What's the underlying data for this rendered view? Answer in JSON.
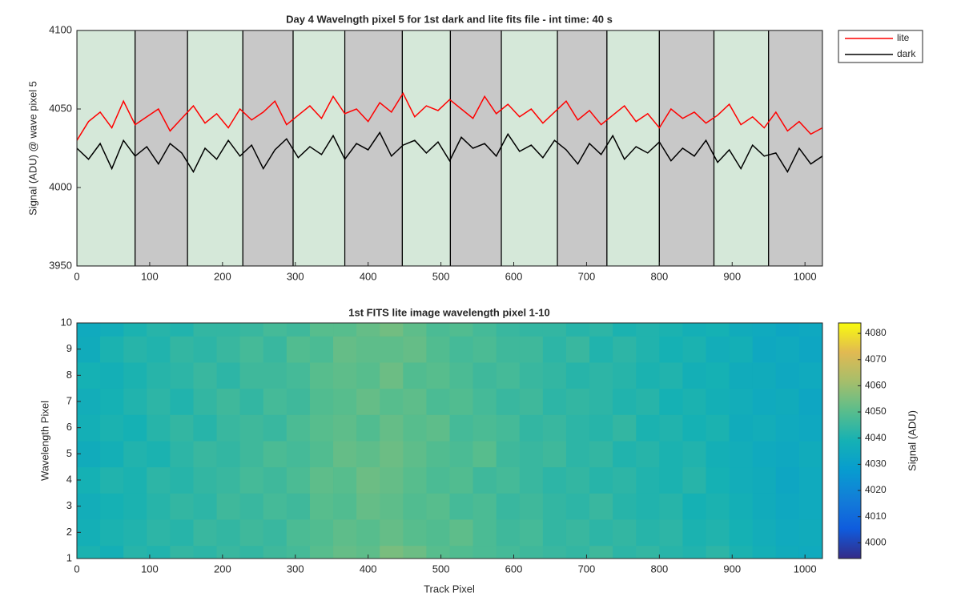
{
  "chart_data": [
    {
      "type": "line",
      "title": "Day 4 Wavelngth pixel 5 for 1st dark and lite fits file - int time: 40 s",
      "ylabel": "Signal (ADU) @ wave pixel 5",
      "x": [
        0,
        16,
        32,
        48,
        64,
        80,
        96,
        112,
        128,
        144,
        160,
        176,
        192,
        208,
        224,
        240,
        256,
        272,
        288,
        304,
        320,
        336,
        352,
        368,
        384,
        400,
        416,
        432,
        448,
        464,
        480,
        496,
        512,
        528,
        544,
        560,
        576,
        592,
        608,
        624,
        640,
        656,
        672,
        688,
        704,
        720,
        736,
        752,
        768,
        784,
        800,
        816,
        832,
        848,
        864,
        880,
        896,
        912,
        928,
        944,
        960,
        976,
        992,
        1008,
        1024
      ],
      "series": [
        {
          "name": "lite",
          "color": "#ff0000",
          "values": [
            4030,
            4042,
            4048,
            4038,
            4055,
            4040,
            4045,
            4050,
            4036,
            4044,
            4052,
            4041,
            4047,
            4038,
            4050,
            4043,
            4048,
            4055,
            4040,
            4046,
            4052,
            4044,
            4058,
            4047,
            4050,
            4042,
            4054,
            4048,
            4060,
            4045,
            4052,
            4049,
            4056,
            4050,
            4044,
            4058,
            4047,
            4053,
            4045,
            4050,
            4041,
            4048,
            4055,
            4043,
            4049,
            4040,
            4046,
            4052,
            4042,
            4047,
            4038,
            4050,
            4044,
            4048,
            4041,
            4046,
            4053,
            4040,
            4045,
            4038,
            4048,
            4036,
            4042,
            4034,
            4038
          ]
        },
        {
          "name": "dark",
          "color": "#000000",
          "values": [
            4025,
            4018,
            4028,
            4012,
            4030,
            4020,
            4026,
            4015,
            4028,
            4022,
            4010,
            4025,
            4018,
            4030,
            4020,
            4027,
            4012,
            4024,
            4031,
            4019,
            4026,
            4021,
            4033,
            4018,
            4028,
            4024,
            4035,
            4020,
            4027,
            4030,
            4022,
            4029,
            4017,
            4032,
            4025,
            4028,
            4020,
            4034,
            4023,
            4027,
            4019,
            4030,
            4024,
            4015,
            4028,
            4021,
            4033,
            4018,
            4026,
            4022,
            4029,
            4017,
            4025,
            4020,
            4030,
            4016,
            4024,
            4012,
            4027,
            4020,
            4022,
            4010,
            4025,
            4015,
            4020
          ]
        }
      ],
      "band_edges": [
        0,
        80,
        152,
        228,
        297,
        368,
        447,
        513,
        583,
        660,
        728,
        800,
        875,
        950,
        1024
      ],
      "band_colors": [
        "#d5e8d9",
        "#c8c8c8"
      ],
      "xlim": [
        0,
        1024
      ],
      "ylim": [
        3950,
        4100
      ],
      "xticks": [
        0,
        100,
        200,
        300,
        400,
        500,
        600,
        700,
        800,
        900,
        1000
      ],
      "yticks": [
        3950,
        4000,
        4050,
        4100
      ],
      "legend": "northeast-outside"
    },
    {
      "type": "heatmap",
      "title": "1st FITS lite image wavelength pixel 1-10",
      "xlabel": "Track Pixel",
      "ylabel": "Wavelength Pixel",
      "x_edges": [
        0,
        32,
        64,
        96,
        128,
        160,
        192,
        224,
        256,
        288,
        320,
        352,
        384,
        416,
        448,
        480,
        512,
        544,
        576,
        608,
        640,
        672,
        704,
        736,
        768,
        800,
        832,
        864,
        896,
        928,
        960,
        992,
        1024
      ],
      "y": [
        1,
        2,
        3,
        4,
        5,
        6,
        7,
        8,
        9,
        10
      ],
      "z": [
        [
          4040,
          4038,
          4042,
          4041,
          4044,
          4043,
          4045,
          4044,
          4046,
          4047,
          4050,
          4052,
          4051,
          4055,
          4053,
          4050,
          4049,
          4048,
          4047,
          4046,
          4045,
          4044,
          4046,
          4043,
          4044,
          4042,
          4041,
          4043,
          4040,
          4038,
          4036,
          4035
        ],
        [
          4038,
          4040,
          4041,
          4043,
          4042,
          4045,
          4044,
          4046,
          4045,
          4048,
          4049,
          4051,
          4050,
          4052,
          4050,
          4049,
          4051,
          4048,
          4046,
          4047,
          4044,
          4045,
          4043,
          4044,
          4042,
          4043,
          4040,
          4041,
          4039,
          4037,
          4035,
          4036
        ],
        [
          4037,
          4039,
          4040,
          4042,
          4044,
          4043,
          4046,
          4045,
          4047,
          4046,
          4050,
          4049,
          4052,
          4051,
          4049,
          4050,
          4047,
          4048,
          4045,
          4046,
          4044,
          4043,
          4045,
          4042,
          4041,
          4042,
          4039,
          4040,
          4038,
          4036,
          4034,
          4035
        ],
        [
          4039,
          4041,
          4040,
          4043,
          4042,
          4044,
          4045,
          4047,
          4046,
          4048,
          4051,
          4050,
          4053,
          4052,
          4050,
          4048,
          4049,
          4046,
          4047,
          4045,
          4043,
          4044,
          4042,
          4043,
          4041,
          4040,
          4042,
          4039,
          4037,
          4036,
          4033,
          4035
        ],
        [
          4036,
          4038,
          4041,
          4040,
          4043,
          4045,
          4044,
          4046,
          4048,
          4047,
          4049,
          4052,
          4051,
          4053,
          4051,
          4049,
          4048,
          4050,
          4046,
          4045,
          4046,
          4043,
          4044,
          4041,
          4042,
          4040,
          4041,
          4038,
          4037,
          4035,
          4034,
          4036
        ],
        [
          4038,
          4040,
          4039,
          4042,
          4044,
          4042,
          4045,
          4046,
          4045,
          4048,
          4050,
          4051,
          4049,
          4052,
          4050,
          4051,
          4047,
          4048,
          4047,
          4044,
          4045,
          4043,
          4042,
          4044,
          4040,
          4041,
          4039,
          4040,
          4036,
          4037,
          4035,
          4034
        ],
        [
          4037,
          4039,
          4041,
          4043,
          4041,
          4044,
          4046,
          4044,
          4047,
          4046,
          4049,
          4050,
          4052,
          4050,
          4051,
          4048,
          4049,
          4047,
          4045,
          4046,
          4043,
          4044,
          4043,
          4041,
          4042,
          4039,
          4040,
          4038,
          4037,
          4035,
          4036,
          4033
        ],
        [
          4039,
          4038,
          4040,
          4042,
          4043,
          4045,
          4043,
          4046,
          4046,
          4047,
          4050,
          4051,
          4050,
          4053,
          4049,
          4050,
          4048,
          4046,
          4047,
          4045,
          4044,
          4042,
          4043,
          4042,
          4040,
          4041,
          4038,
          4039,
          4036,
          4036,
          4034,
          4035
        ],
        [
          4036,
          4040,
          4042,
          4041,
          4044,
          4043,
          4045,
          4047,
          4045,
          4049,
          4048,
          4052,
          4051,
          4051,
          4052,
          4049,
          4047,
          4048,
          4046,
          4046,
          4043,
          4045,
          4041,
          4043,
          4041,
          4039,
          4040,
          4037,
          4038,
          4034,
          4035,
          4033
        ],
        [
          4035,
          4037,
          4040,
          4042,
          4041,
          4044,
          4044,
          4045,
          4047,
          4046,
          4050,
          4050,
          4052,
          4054,
          4051,
          4048,
          4049,
          4047,
          4045,
          4044,
          4044,
          4042,
          4043,
          4040,
          4041,
          4040,
          4038,
          4039,
          4036,
          4035,
          4033,
          4034
        ]
      ],
      "xlim": [
        0,
        1024
      ],
      "ylim": [
        1,
        10
      ],
      "xticks": [
        0,
        100,
        200,
        300,
        400,
        500,
        600,
        700,
        800,
        900,
        1000
      ],
      "yticks": [
        1,
        2,
        3,
        4,
        5,
        6,
        7,
        8,
        9,
        10
      ],
      "clim": [
        3994,
        4084
      ],
      "colorbar_ticks": [
        4000,
        4010,
        4020,
        4030,
        4040,
        4050,
        4060,
        4070,
        4080
      ],
      "colorbar_label": "Signal (ADU)",
      "colormap": "parula"
    }
  ]
}
